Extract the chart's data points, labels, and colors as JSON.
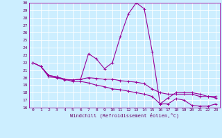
{
  "xlabel": "Windchill (Refroidissement éolien,°C)",
  "background_color": "#cceeff",
  "grid_color": "#ffffff",
  "line_color": "#990099",
  "x_hours": [
    0,
    1,
    2,
    3,
    4,
    5,
    6,
    7,
    8,
    9,
    10,
    11,
    12,
    13,
    14,
    15,
    16,
    17,
    18,
    19,
    20,
    21,
    22,
    23
  ],
  "series1": [
    22.0,
    21.5,
    20.3,
    20.1,
    19.8,
    19.7,
    19.8,
    23.2,
    22.5,
    21.2,
    22.0,
    25.5,
    28.5,
    30.0,
    29.2,
    23.5,
    16.5,
    17.3,
    18.0,
    18.0,
    18.0,
    17.8,
    17.5,
    17.5
  ],
  "series2": [
    22.0,
    21.5,
    20.3,
    20.1,
    19.8,
    19.5,
    19.5,
    19.3,
    19.0,
    18.8,
    18.5,
    18.4,
    18.2,
    18.0,
    17.8,
    17.5,
    16.5,
    16.5,
    17.2,
    17.0,
    16.3,
    16.2,
    16.2,
    16.5
  ],
  "series3": [
    22.0,
    21.5,
    20.1,
    20.0,
    19.7,
    19.7,
    19.8,
    20.0,
    19.9,
    19.8,
    19.8,
    19.6,
    19.5,
    19.4,
    19.2,
    18.5,
    18.0,
    17.8,
    17.8,
    17.8,
    17.8,
    17.5,
    17.5,
    17.3
  ],
  "ylim": [
    16,
    30
  ],
  "yticks": [
    16,
    17,
    18,
    19,
    20,
    21,
    22,
    23,
    24,
    25,
    26,
    27,
    28,
    29,
    30
  ],
  "xlim_min": -0.5,
  "xlim_max": 23.5,
  "xticks": [
    0,
    1,
    2,
    3,
    4,
    5,
    6,
    7,
    8,
    9,
    10,
    11,
    12,
    13,
    14,
    15,
    16,
    17,
    18,
    19,
    20,
    21,
    22,
    23
  ],
  "marker": "+",
  "figwidth": 3.2,
  "figheight": 2.0,
  "dpi": 100
}
